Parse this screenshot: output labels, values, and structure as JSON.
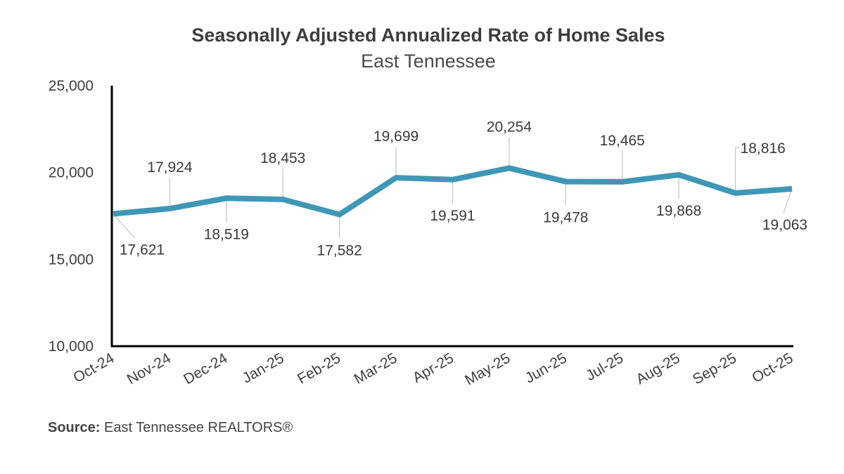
{
  "chart_data": {
    "type": "line",
    "title": "Seasonally Adjusted Annualized Rate of Home Sales",
    "subtitle": "East Tennessee",
    "xlabel": "",
    "ylabel": "",
    "categories": [
      "Oct-24",
      "Nov-24",
      "Dec-24",
      "Jan-25",
      "Feb-25",
      "Mar-25",
      "Apr-25",
      "May-25",
      "Jun-25",
      "Jul-25",
      "Aug-25",
      "Sep-25",
      "Oct-25"
    ],
    "series": [
      {
        "name": "Seasonally Adjusted Annualized Rate of Home Sales",
        "values": [
          17621,
          17924,
          18519,
          18453,
          17582,
          19699,
          19591,
          20254,
          19478,
          19465,
          19868,
          18816,
          19063
        ],
        "data_labels": [
          "17,621",
          "17,924",
          "18,519",
          "18,453",
          "17,582",
          "19,699",
          "19,591",
          "20,254",
          "19,478",
          "19,465",
          "19,868",
          "18,816",
          "19,063"
        ],
        "label_positions": [
          "below",
          "above",
          "below",
          "above",
          "below",
          "above",
          "below",
          "above",
          "below",
          "above",
          "below",
          "above",
          "below"
        ],
        "color": "#3f97b6"
      }
    ],
    "ylim": [
      10000,
      25000
    ],
    "yticks": [
      10000,
      15000,
      20000,
      25000
    ],
    "ytick_labels": [
      "10,000",
      "15,000",
      "20,000",
      "25,000"
    ],
    "grid": false,
    "legend": "none"
  },
  "source": {
    "label": "Source:",
    "text": "East Tennessee REALTORS®"
  }
}
